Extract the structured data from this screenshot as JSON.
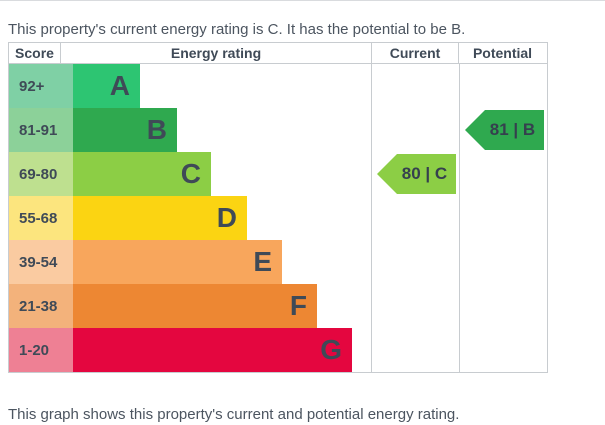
{
  "notes": {
    "top": "This property's current energy rating is C. It has the potential to be B.",
    "bottom": "This graph shows this property's current and potential energy rating."
  },
  "table": {
    "columns": {
      "score": "Score",
      "rating": "Energy rating",
      "current": "Current",
      "potential": "Potential"
    }
  },
  "chart_data": {
    "type": "bar",
    "title": "Energy rating",
    "orientation": "horizontal",
    "bands": [
      {
        "letter": "A",
        "score": "92+",
        "color": "#2dc572",
        "tint": "#7fd0a5"
      },
      {
        "letter": "B",
        "score": "81-91",
        "color": "#2fa94f",
        "tint": "#8cd199"
      },
      {
        "letter": "C",
        "score": "69-80",
        "color": "#8cce45",
        "tint": "#bee08f"
      },
      {
        "letter": "D",
        "score": "55-68",
        "color": "#fbd412",
        "tint": "#fce57e"
      },
      {
        "letter": "E",
        "score": "39-54",
        "color": "#f8a65c",
        "tint": "#facba1"
      },
      {
        "letter": "F",
        "score": "21-38",
        "color": "#ed8733",
        "tint": "#f3b27b"
      },
      {
        "letter": "G",
        "score": "1-20",
        "color": "#e4063f",
        "tint": "#ee8094"
      }
    ],
    "current": {
      "label": "80 | C",
      "value": 80,
      "band": "C",
      "color": "#8cce45"
    },
    "potential": {
      "label": "81 | B",
      "value": 81,
      "band": "B",
      "color": "#2fa94f"
    }
  }
}
